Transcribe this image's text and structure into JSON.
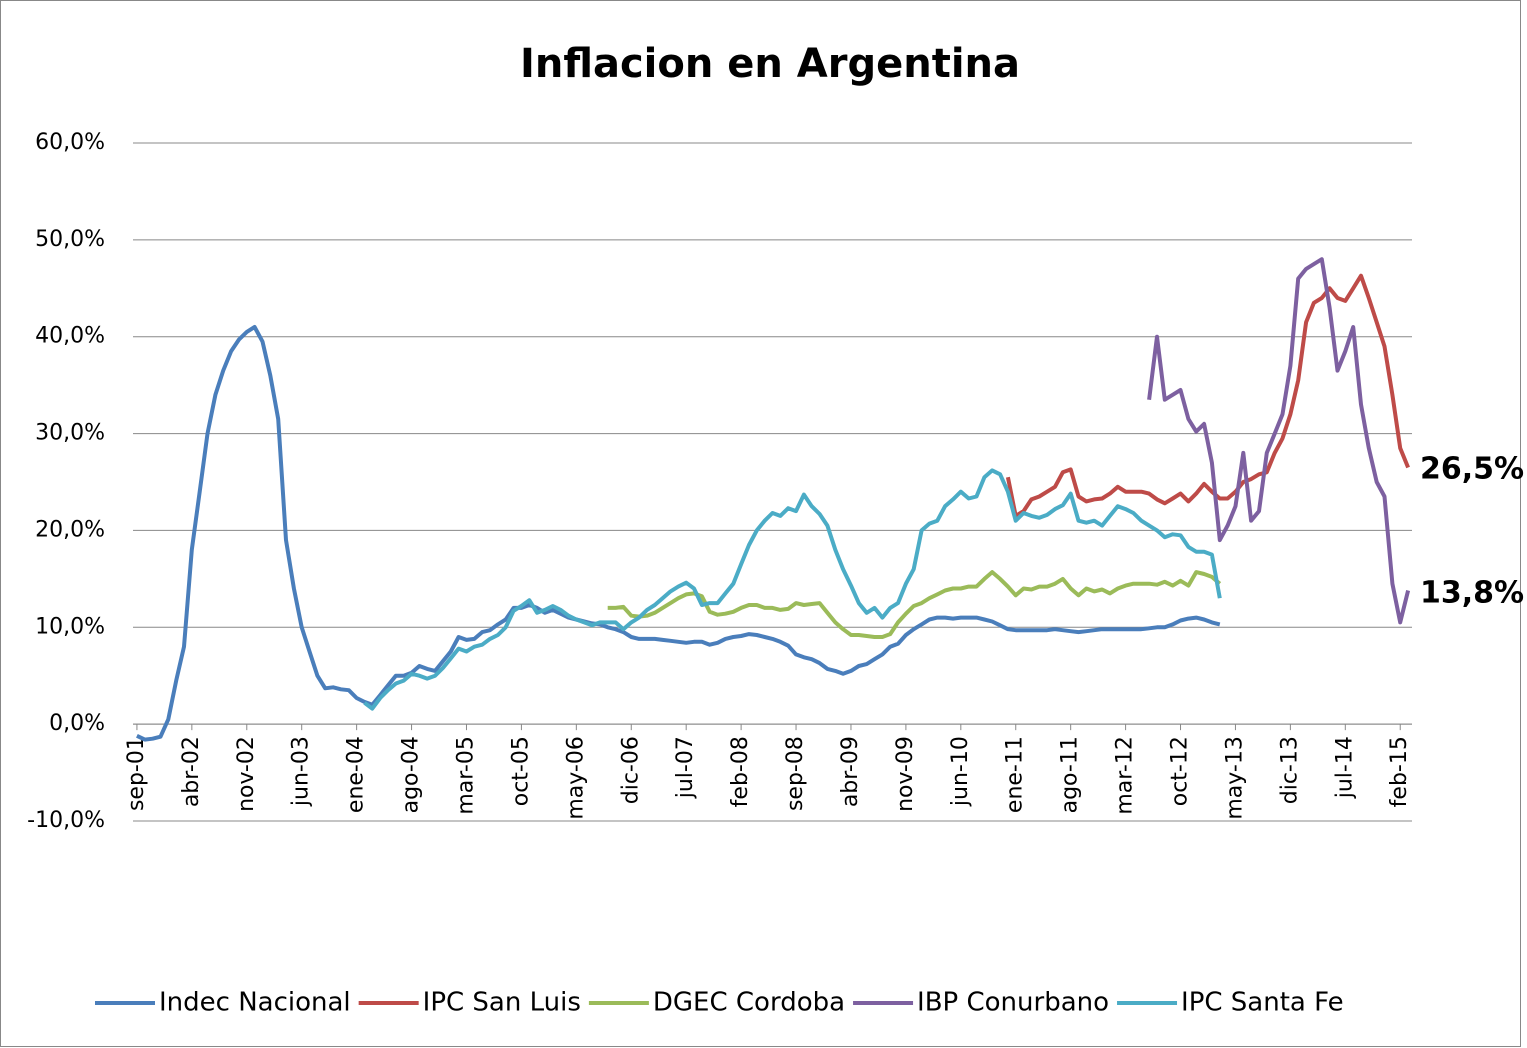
{
  "chart_data": {
    "type": "line",
    "title": "Inflacion en Argentina",
    "categories": [
      "sep-01",
      null,
      null,
      null,
      null,
      null,
      null,
      "abr-02",
      null,
      null,
      null,
      null,
      null,
      null,
      "nov-02",
      null,
      null,
      null,
      null,
      null,
      null,
      "jun-03",
      null,
      null,
      null,
      null,
      null,
      null,
      "ene-04",
      null,
      null,
      null,
      null,
      null,
      null,
      "ago-04",
      null,
      null,
      null,
      null,
      null,
      null,
      "mar-05",
      null,
      null,
      null,
      null,
      null,
      null,
      "oct-05",
      null,
      null,
      null,
      null,
      null,
      null,
      "may-06",
      null,
      null,
      null,
      null,
      null,
      null,
      "dic-06",
      null,
      null,
      null,
      null,
      null,
      null,
      "jul-07",
      null,
      null,
      null,
      null,
      null,
      null,
      "feb-08",
      null,
      null,
      null,
      null,
      null,
      null,
      "sep-08",
      null,
      null,
      null,
      null,
      null,
      null,
      "abr-09",
      null,
      null,
      null,
      null,
      null,
      null,
      "nov-09",
      null,
      null,
      null,
      null,
      null,
      null,
      "jun-10",
      null,
      null,
      null,
      null,
      null,
      null,
      "ene-11",
      null,
      null,
      null,
      null,
      null,
      null,
      "ago-11",
      null,
      null,
      null,
      null,
      null,
      null,
      "mar-12",
      null,
      null,
      null,
      null,
      null,
      null,
      "oct-12",
      null,
      null,
      null,
      null,
      null,
      null,
      "may-13",
      null,
      null,
      null,
      null,
      null,
      null,
      "dic-13",
      null,
      null,
      null,
      null,
      null,
      null,
      "jul-14",
      null,
      null,
      null,
      null,
      null,
      null,
      "feb-15",
      null
    ],
    "series": [
      {
        "name": "Indec Nacional",
        "color": "#4a7ebb",
        "values": [
          -1.2,
          -1.6,
          -1.5,
          -1.3,
          0.5,
          4.5,
          8,
          18,
          24,
          30,
          34,
          36.5,
          38.5,
          39.7,
          40.5,
          41,
          39.5,
          36,
          31.5,
          19,
          14,
          10,
          7.5,
          5,
          3.7,
          3.8,
          3.6,
          3.5,
          2.7,
          2.3,
          2,
          3,
          4,
          5,
          5,
          5.3,
          6,
          5.7,
          5.5,
          6.5,
          7.5,
          9,
          8.7,
          8.8,
          9.5,
          9.7,
          10.3,
          10.8,
          12,
          12,
          12.3,
          12,
          11.5,
          11.8,
          11.4,
          11,
          10.8,
          10.6,
          10.4,
          10.3,
          10,
          9.8,
          9.5,
          9,
          8.8,
          8.8,
          8.8,
          8.7,
          8.6,
          8.5,
          8.4,
          8.5,
          8.5,
          8.2,
          8.4,
          8.8,
          9,
          9.1,
          9.3,
          9.2,
          9,
          8.8,
          8.5,
          8.1,
          7.2,
          6.9,
          6.7,
          6.3,
          5.7,
          5.5,
          5.2,
          5.5,
          6,
          6.2,
          6.7,
          7.2,
          8,
          8.3,
          9.2,
          9.8,
          10.3,
          10.8,
          11,
          11,
          10.9,
          11,
          11,
          11,
          10.8,
          10.6,
          10.2,
          9.8,
          9.7,
          9.7,
          9.7,
          9.7,
          9.7,
          9.8,
          9.7,
          9.6,
          9.5,
          9.6,
          9.7,
          9.8,
          9.8,
          9.8,
          9.8,
          9.8,
          9.8,
          9.9,
          10,
          10,
          10.3,
          10.7,
          10.9,
          11,
          10.8,
          10.5,
          10.3,
          null,
          null,
          null,
          null,
          null,
          null,
          null,
          null,
          null,
          null,
          null,
          null,
          null,
          null,
          null,
          null,
          null,
          null,
          null,
          null,
          null,
          null,
          null,
          null
        ]
      },
      {
        "name": "IPC San Luis",
        "color": "#be4b48",
        "values": [
          null,
          null,
          null,
          null,
          null,
          null,
          null,
          null,
          null,
          null,
          null,
          null,
          null,
          null,
          null,
          null,
          null,
          null,
          null,
          null,
          null,
          null,
          null,
          null,
          null,
          null,
          null,
          null,
          null,
          null,
          null,
          null,
          null,
          null,
          null,
          null,
          null,
          null,
          null,
          null,
          null,
          null,
          null,
          null,
          null,
          null,
          null,
          null,
          null,
          null,
          null,
          null,
          null,
          null,
          null,
          null,
          null,
          null,
          null,
          null,
          null,
          null,
          null,
          null,
          null,
          null,
          null,
          null,
          null,
          null,
          null,
          null,
          null,
          null,
          null,
          null,
          null,
          null,
          null,
          null,
          null,
          null,
          null,
          null,
          null,
          null,
          null,
          null,
          null,
          null,
          null,
          null,
          null,
          null,
          null,
          null,
          null,
          null,
          null,
          null,
          null,
          null,
          null,
          null,
          null,
          null,
          null,
          null,
          null,
          null,
          null,
          25.5,
          21.5,
          22,
          23.2,
          23.5,
          24,
          24.5,
          26,
          26.3,
          23.5,
          23,
          23.2,
          23.3,
          23.8,
          24.5,
          24,
          24,
          24,
          23.8,
          23.2,
          22.8,
          23.3,
          23.8,
          23,
          23.8,
          24.8,
          24,
          23.3,
          23.3,
          24,
          25,
          25.3,
          25.8,
          26,
          28,
          29.5,
          32,
          35.5,
          41.5,
          43.5,
          44,
          45,
          44,
          43.7,
          45,
          46.3,
          44,
          41.5,
          39,
          34,
          28.5,
          26.5
        ]
      },
      {
        "name": "DGEC Cordoba",
        "color": "#9bbb59",
        "values": [
          null,
          null,
          null,
          null,
          null,
          null,
          null,
          null,
          null,
          null,
          null,
          null,
          null,
          null,
          null,
          null,
          null,
          null,
          null,
          null,
          null,
          null,
          null,
          null,
          null,
          null,
          null,
          null,
          null,
          null,
          null,
          null,
          null,
          null,
          null,
          null,
          null,
          null,
          null,
          null,
          null,
          null,
          null,
          null,
          null,
          null,
          null,
          null,
          null,
          null,
          null,
          null,
          null,
          null,
          null,
          null,
          null,
          null,
          null,
          null,
          12,
          12,
          12.1,
          11.2,
          11.1,
          11.2,
          11.5,
          12,
          12.5,
          13,
          13.4,
          13.5,
          13.2,
          11.6,
          11.3,
          11.4,
          11.6,
          12,
          12.3,
          12.3,
          12,
          12,
          11.8,
          11.9,
          12.5,
          12.3,
          12.4,
          12.5,
          11.5,
          10.5,
          9.8,
          9.2,
          9.2,
          9.1,
          9,
          9,
          9.3,
          10.5,
          11.4,
          12.2,
          12.5,
          13,
          13.4,
          13.8,
          14,
          14,
          14.2,
          14.2,
          15,
          15.7,
          15,
          14.2,
          13.3,
          14,
          13.9,
          14.2,
          14.2,
          14.5,
          15,
          14,
          13.3,
          14,
          13.7,
          13.9,
          13.5,
          14,
          14.3,
          14.5,
          14.5,
          14.5,
          14.4,
          14.7,
          14.3,
          14.8,
          14.3,
          15.7,
          15.5,
          15.2,
          14.5,
          null,
          null,
          null,
          null,
          null,
          null,
          null,
          null,
          null,
          null,
          null,
          null,
          null,
          null,
          null,
          null,
          null,
          null,
          null,
          null,
          null,
          null,
          null,
          null
        ]
      },
      {
        "name": "IBP Conurbano",
        "color": "#7d60a0",
        "values": [
          null,
          null,
          null,
          null,
          null,
          null,
          null,
          null,
          null,
          null,
          null,
          null,
          null,
          null,
          null,
          null,
          null,
          null,
          null,
          null,
          null,
          null,
          null,
          null,
          null,
          null,
          null,
          null,
          null,
          null,
          null,
          null,
          null,
          null,
          null,
          null,
          null,
          null,
          null,
          null,
          null,
          null,
          null,
          null,
          null,
          null,
          null,
          null,
          null,
          null,
          null,
          null,
          null,
          null,
          null,
          null,
          null,
          null,
          null,
          null,
          null,
          null,
          null,
          null,
          null,
          null,
          null,
          null,
          null,
          null,
          null,
          null,
          null,
          null,
          null,
          null,
          null,
          null,
          null,
          null,
          null,
          null,
          null,
          null,
          null,
          null,
          null,
          null,
          null,
          null,
          null,
          null,
          null,
          null,
          null,
          null,
          null,
          null,
          null,
          null,
          null,
          null,
          null,
          null,
          null,
          null,
          null,
          null,
          null,
          null,
          null,
          null,
          null,
          null,
          null,
          null,
          null,
          null,
          null,
          null,
          null,
          null,
          null,
          null,
          null,
          null,
          null,
          null,
          null,
          33.5,
          40,
          33.5,
          34,
          34.5,
          31.5,
          30.2,
          31,
          27,
          19,
          20.5,
          22.5,
          28,
          21,
          22,
          28,
          30,
          32,
          37,
          46,
          47,
          47.5,
          48,
          43,
          36.5,
          38.5,
          41,
          33,
          28.5,
          25,
          23.5,
          14.5,
          10.5,
          13.8
        ]
      },
      {
        "name": "IPC Santa Fe",
        "color": "#4bacc6",
        "values": [
          null,
          null,
          null,
          null,
          null,
          null,
          null,
          null,
          null,
          null,
          null,
          null,
          null,
          null,
          null,
          null,
          null,
          null,
          null,
          null,
          null,
          null,
          null,
          null,
          null,
          null,
          null,
          null,
          null,
          2.2,
          1.6,
          2.7,
          3.5,
          4.2,
          4.5,
          5.2,
          5,
          4.7,
          5,
          5.8,
          6.8,
          7.8,
          7.5,
          8,
          8.2,
          8.8,
          9.2,
          10,
          11.7,
          12.2,
          12.8,
          11.5,
          11.8,
          12.2,
          11.8,
          11.2,
          10.8,
          10.5,
          10.2,
          10.5,
          10.5,
          10.5,
          9.8,
          10.5,
          11,
          11.8,
          12.3,
          13,
          13.7,
          14.2,
          14.6,
          14,
          12.3,
          12.5,
          12.5,
          13.5,
          14.5,
          16.5,
          18.5,
          20,
          21,
          21.8,
          21.5,
          22.3,
          22,
          23.7,
          22.5,
          21.7,
          20.5,
          18,
          16,
          14.3,
          12.5,
          11.5,
          12,
          11,
          12,
          12.5,
          14.5,
          16,
          20,
          20.7,
          21,
          22.5,
          23.2,
          24,
          23.3,
          23.5,
          25.5,
          26.2,
          25.8,
          24,
          21,
          21.8,
          21.5,
          21.3,
          21.6,
          22.2,
          22.6,
          23.8,
          21,
          20.8,
          21,
          20.5,
          21.5,
          22.5,
          22.2,
          21.8,
          21,
          20.5,
          20,
          19.3,
          19.6,
          19.5,
          18.3,
          17.8,
          17.8,
          17.5,
          13,
          null,
          null,
          null,
          null,
          null,
          null,
          null,
          null,
          null,
          null,
          null,
          null,
          null,
          null,
          null,
          null,
          null,
          null,
          null,
          null,
          null,
          null,
          null,
          null
        ]
      }
    ],
    "ylim": [
      -10,
      60
    ],
    "yticks": [
      {
        "value": -10,
        "label": "-10,0%"
      },
      {
        "value": 0,
        "label": "0,0%"
      },
      {
        "value": 10,
        "label": "10,0%"
      },
      {
        "value": 20,
        "label": "20,0%"
      },
      {
        "value": 30,
        "label": "30,0%"
      },
      {
        "value": 40,
        "label": "40,0%"
      },
      {
        "value": 50,
        "label": "50,0%"
      },
      {
        "value": 60,
        "label": "60,0%"
      }
    ],
    "grid": true,
    "legend": "bottom",
    "annotations": [
      {
        "text": "26,5%",
        "color": "#ff0000"
      },
      {
        "text": "13,8%",
        "color": "#7030a0"
      }
    ]
  }
}
